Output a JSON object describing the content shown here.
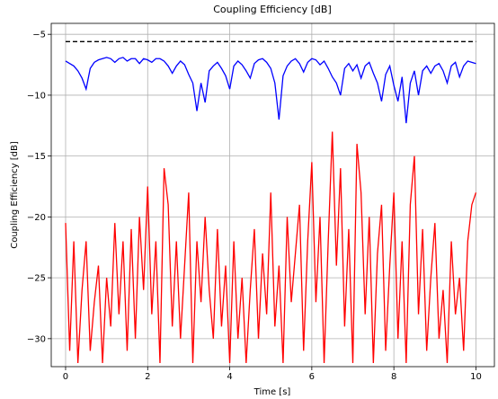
{
  "chart_data": {
    "type": "line",
    "title": "Coupling Efficiency [dB]",
    "xlabel": "Time [s]",
    "ylabel": "Coupling Efficiency [dB]",
    "xlim": [
      -0.35,
      10.45
    ],
    "ylim": [
      -32.3,
      -4.1
    ],
    "xticks": [
      0,
      2,
      4,
      6,
      8,
      10
    ],
    "yticks": [
      {
        "value": -30,
        "label": "−30"
      },
      {
        "value": -25,
        "label": "−25"
      },
      {
        "value": -20,
        "label": "−20"
      },
      {
        "value": -15,
        "label": "−15"
      },
      {
        "value": -10,
        "label": "−10"
      },
      {
        "value": -5,
        "label": "−5"
      }
    ],
    "grid": true,
    "x": [
      0,
      0.1,
      0.2,
      0.3,
      0.4,
      0.5,
      0.6,
      0.7,
      0.8,
      0.9,
      1,
      1.1,
      1.2,
      1.3,
      1.4,
      1.5,
      1.6,
      1.7,
      1.8,
      1.9,
      2,
      2.1,
      2.2,
      2.3,
      2.4,
      2.5,
      2.6,
      2.7,
      2.8,
      2.9,
      3,
      3.1,
      3.2,
      3.3,
      3.4,
      3.5,
      3.6,
      3.7,
      3.8,
      3.9,
      4,
      4.1,
      4.2,
      4.3,
      4.4,
      4.5,
      4.6,
      4.7,
      4.8,
      4.9,
      5,
      5.1,
      5.2,
      5.3,
      5.4,
      5.5,
      5.6,
      5.7,
      5.8,
      5.9,
      6,
      6.1,
      6.2,
      6.3,
      6.4,
      6.5,
      6.6,
      6.7,
      6.8,
      6.9,
      7,
      7.1,
      7.2,
      7.3,
      7.4,
      7.5,
      7.6,
      7.7,
      7.8,
      7.9,
      8,
      8.1,
      8.2,
      8.3,
      8.4,
      8.5,
      8.6,
      8.7,
      8.8,
      8.9,
      9,
      9.1,
      9.2,
      9.3,
      9.4,
      9.5,
      9.6,
      9.7,
      9.8,
      9.9,
      10
    ],
    "series": [
      {
        "color": "#0000ff",
        "values": [
          -7.2,
          -7.4,
          -7.6,
          -8.0,
          -8.6,
          -9.5,
          -7.8,
          -7.3,
          -7.1,
          -7.0,
          -6.9,
          -7.0,
          -7.3,
          -7.0,
          -6.9,
          -7.2,
          -7.0,
          -7.0,
          -7.4,
          -7.0,
          -7.1,
          -7.3,
          -7.0,
          -7.0,
          -7.2,
          -7.6,
          -8.2,
          -7.6,
          -7.2,
          -7.5,
          -8.3,
          -9.0,
          -11.3,
          -9.0,
          -10.6,
          -8.0,
          -7.6,
          -7.3,
          -7.8,
          -8.4,
          -9.5,
          -7.6,
          -7.2,
          -7.5,
          -8.0,
          -8.6,
          -7.4,
          -7.1,
          -7.0,
          -7.3,
          -7.8,
          -9.0,
          -12.0,
          -8.4,
          -7.6,
          -7.2,
          -7.0,
          -7.4,
          -8.1,
          -7.3,
          -7.0,
          -7.1,
          -7.5,
          -7.2,
          -7.8,
          -8.5,
          -9.0,
          -10.0,
          -7.8,
          -7.4,
          -8.0,
          -7.5,
          -8.6,
          -7.6,
          -7.3,
          -8.2,
          -9.0,
          -10.5,
          -8.3,
          -7.6,
          -9.2,
          -10.5,
          -8.5,
          -12.3,
          -9.0,
          -8.0,
          -10.0,
          -8.0,
          -7.6,
          -8.2,
          -7.6,
          -7.4,
          -8.0,
          -9.0,
          -7.6,
          -7.3,
          -8.5,
          -7.6,
          -7.2,
          -7.3,
          -7.4
        ]
      },
      {
        "color": "#ff0000",
        "values": [
          -20.5,
          -31,
          -22,
          -32,
          -26,
          -22,
          -31,
          -27,
          -24,
          -32,
          -25,
          -29,
          -20.5,
          -28,
          -22,
          -31,
          -21,
          -30,
          -20,
          -26,
          -17.5,
          -28,
          -22,
          -32,
          -16,
          -19,
          -29,
          -22,
          -30,
          -24,
          -18,
          -32,
          -22,
          -27,
          -20,
          -26,
          -30,
          -21,
          -29,
          -24,
          -32,
          -22,
          -30,
          -25,
          -32,
          -26,
          -21,
          -30,
          -23,
          -28,
          -18,
          -29,
          -24,
          -32,
          -20,
          -27,
          -23,
          -19,
          -31,
          -22,
          -15.5,
          -27,
          -20,
          -32,
          -22,
          -13,
          -24,
          -16,
          -29,
          -21,
          -32,
          -14,
          -18,
          -28,
          -20,
          -32,
          -23,
          -19,
          -31,
          -24,
          -18,
          -30,
          -22,
          -32,
          -19,
          -15,
          -28,
          -21,
          -31,
          -25,
          -20.5,
          -30,
          -26,
          -32,
          -22,
          -28,
          -25,
          -31,
          -22,
          -19,
          -18
        ]
      },
      {
        "color": "#000000",
        "dashed": true,
        "x": [
          0,
          10
        ],
        "values": [
          -5.6,
          -5.6
        ]
      }
    ]
  }
}
